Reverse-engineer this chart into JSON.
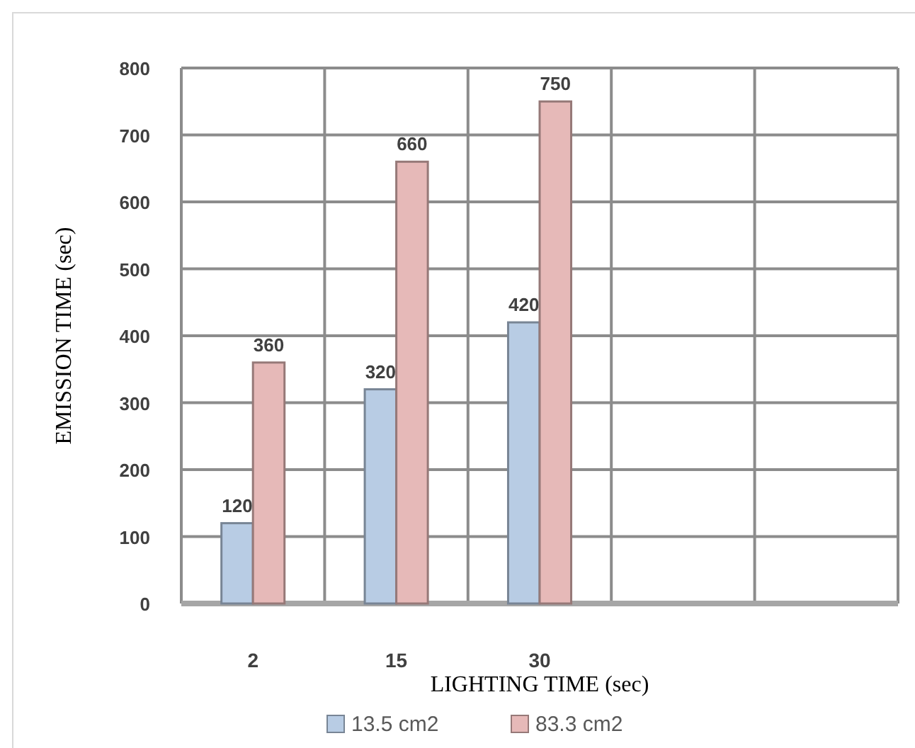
{
  "chart_data": {
    "type": "bar",
    "xlabel": "LIGHTING TIME (sec)",
    "ylabel": "EMISSION TIME (sec)",
    "categories": [
      "2",
      "15",
      "30",
      null,
      null
    ],
    "series": [
      {
        "name": "13.5 cm2",
        "color": "#b8cce4",
        "values": [
          120,
          320,
          420,
          null,
          null
        ]
      },
      {
        "name": "83.3 cm2",
        "color": "#e6b9b8",
        "values": [
          360,
          660,
          750,
          null,
          null
        ]
      }
    ],
    "ylim": [
      0,
      800
    ],
    "yticks": [
      0,
      100,
      200,
      300,
      400,
      500,
      600,
      700,
      800
    ],
    "grid": true,
    "legend": "bottom",
    "data_labels": true
  }
}
